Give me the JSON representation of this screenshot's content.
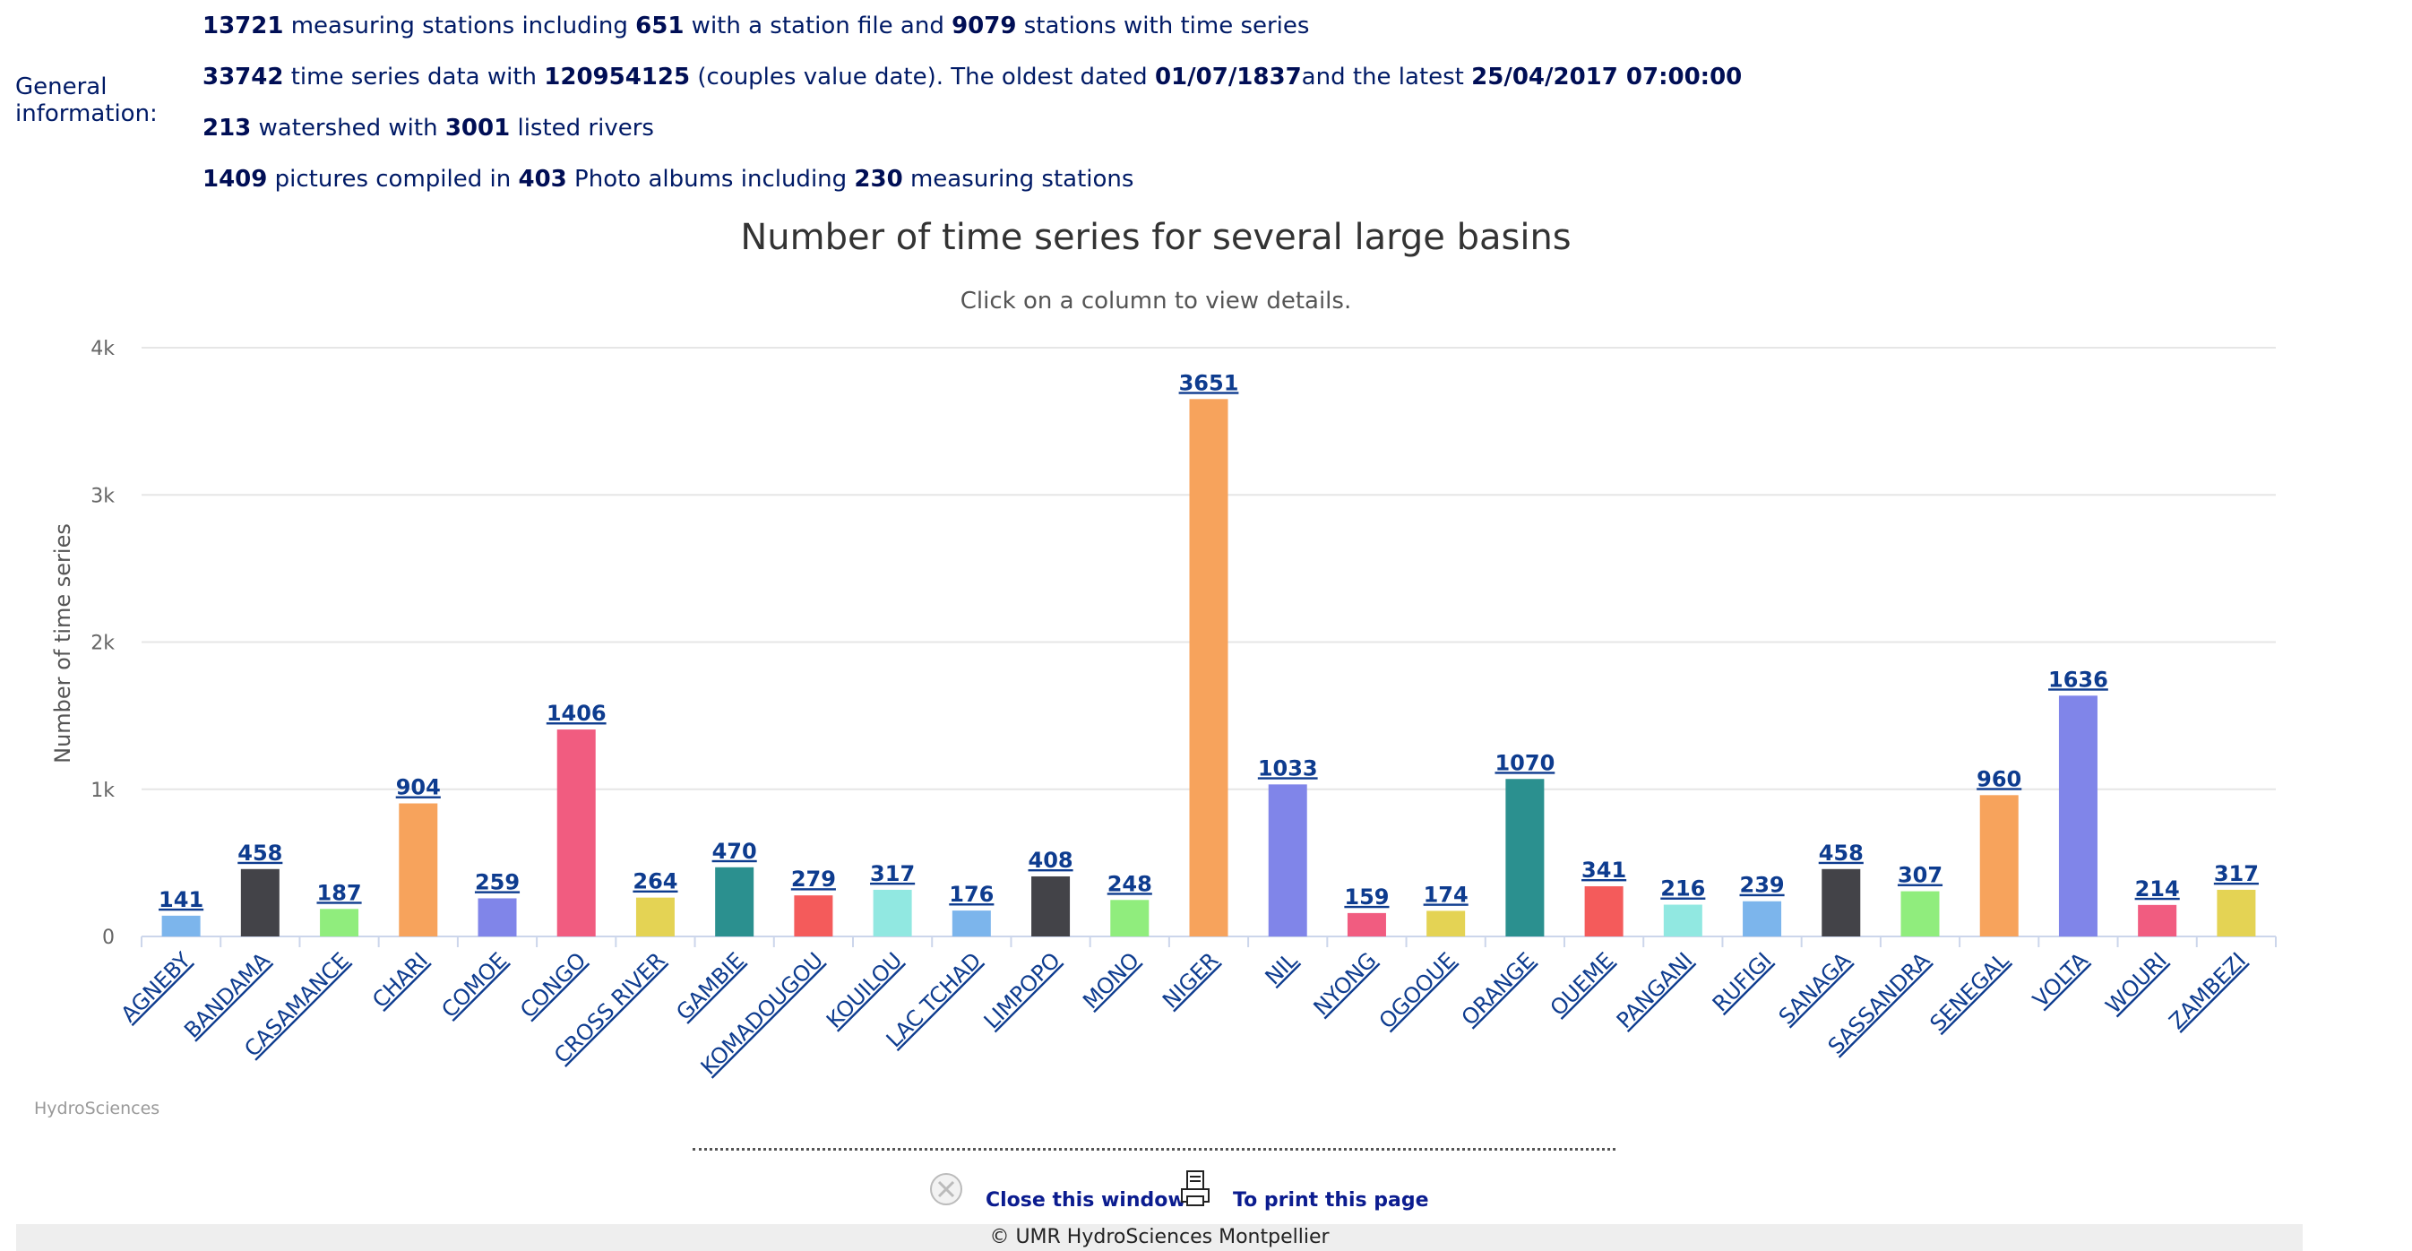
{
  "general_info": {
    "label_line1": "General",
    "label_line2": "information:",
    "line1": {
      "n1": "13721",
      "t1": " measuring stations including ",
      "n2": "651",
      "t2": " with a station file and ",
      "n3": "9079",
      "t3": "  stations with time series"
    },
    "line2": {
      "n1": "33742",
      "t1": " time series data with ",
      "n2": "120954125",
      "t2": " (couples value date). The oldest dated ",
      "n3": "01/07/1837",
      "t3": "and the latest ",
      "n4": "25/04/2017 07:00:00"
    },
    "line3": {
      "n1": "213",
      "t1": " watershed with ",
      "n2": "3001",
      "t2": " listed rivers"
    },
    "line4": {
      "n1": "1409",
      "t1": " pictures compiled in ",
      "n2": "403",
      "t2": " Photo albums including ",
      "n3": "230",
      "t3": " measuring stations"
    }
  },
  "chart_data": {
    "type": "bar",
    "title": "Number of time series for several large basins",
    "subtitle": "Click on a column to view details.",
    "xlabel": "",
    "ylabel": "Number of time series",
    "ylim": [
      0,
      4000
    ],
    "yticks": [
      {
        "v": 0,
        "label": "0"
      },
      {
        "v": 1000,
        "label": "1k"
      },
      {
        "v": 2000,
        "label": "2k"
      },
      {
        "v": 3000,
        "label": "3k"
      },
      {
        "v": 4000,
        "label": "4k"
      }
    ],
    "grid": true,
    "legend": "none",
    "categories": [
      "AGNEBY",
      "BANDAMA",
      "CASAMANCE",
      "CHARI",
      "COMOE",
      "CONGO",
      "CROSS RIVER",
      "GAMBIE",
      "KOMADOUGOU",
      "KOUILOU",
      "LAC TCHAD",
      "LIMPOPO",
      "MONO",
      "NIGER",
      "NIL",
      "NYONG",
      "OGOOUE",
      "ORANGE",
      "OUEME",
      "PANGANI",
      "RUFIGI",
      "SANAGA",
      "SASSANDRA",
      "SENEGAL",
      "VOLTA",
      "WOURI",
      "ZAMBEZI"
    ],
    "values": [
      141,
      458,
      187,
      904,
      259,
      1406,
      264,
      470,
      279,
      317,
      176,
      408,
      248,
      3651,
      1033,
      159,
      174,
      1070,
      341,
      216,
      239,
      458,
      307,
      960,
      1636,
      214,
      317
    ],
    "palette": [
      "#7cb5ec",
      "#434348",
      "#90ed7d",
      "#f7a35c",
      "#8085e9",
      "#f15c80",
      "#e4d354",
      "#2b908f",
      "#f45b5b",
      "#91e8e1"
    ],
    "credits": "HydroSciences"
  },
  "footer": {
    "close_label": "Close this window",
    "print_label": "To print this page",
    "copyright": "© UMR HydroSciences Montpellier"
  }
}
